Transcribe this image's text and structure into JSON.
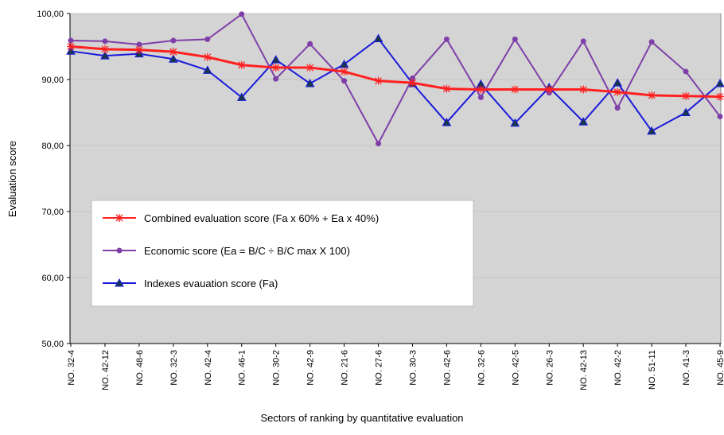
{
  "chart_data": {
    "type": "line",
    "x_label": "Sectors of ranking by quantitative evaluation",
    "y_label": "Evaluation score",
    "categories": [
      "NO. 32-4",
      "NO. 42-12",
      "NO. 48-6",
      "NO. 32-3",
      "NO. 42-4",
      "NO. 46-1",
      "NO. 30-2",
      "NO. 42-9",
      "NO. 21-6",
      "NO. 27-6",
      "NO. 30-3",
      "NO. 42-6",
      "NO. 32-6",
      "NO. 42-5",
      "NO. 26-3",
      "NO. 42-13",
      "NO. 42-2",
      "NO. 51-11",
      "NO. 41-3",
      "NO. 45-9"
    ],
    "series": [
      {
        "name": "Combined evaluation score (Fa x 60% + Ea x 40%)",
        "color": "#ff2020",
        "marker": "star",
        "values": [
          95.0,
          94.6,
          94.5,
          94.2,
          93.4,
          92.2,
          91.8,
          91.8,
          91.2,
          89.8,
          89.5,
          88.6,
          88.5,
          88.5,
          88.5,
          88.5,
          88.1,
          87.6,
          87.5,
          87.4
        ]
      },
      {
        "name": "Economic score (Ea = B/C ÷ B/C max X 100)",
        "color": "#7f3fa8",
        "marker": "circle",
        "values": [
          95.9,
          95.8,
          95.3,
          95.9,
          96.1,
          99.9,
          90.1,
          95.4,
          89.8,
          80.3,
          90.2,
          96.1,
          87.3,
          96.1,
          88.0,
          95.8,
          85.7,
          95.7,
          91.2,
          84.4
        ]
      },
      {
        "name": "Indexes evauation score (Fa)",
        "color": "#1a1adc",
        "marker": "triangle",
        "values": [
          94.3,
          93.6,
          93.9,
          93.1,
          91.4,
          87.3,
          93.0,
          89.4,
          92.3,
          96.2,
          89.4,
          83.5,
          89.3,
          83.4,
          88.8,
          83.6,
          89.5,
          82.2,
          85.0,
          89.4
        ]
      }
    ],
    "ylim": [
      50,
      100
    ],
    "yticks": [
      {
        "value": 50,
        "label": "50,00"
      },
      {
        "value": 60,
        "label": "60,00"
      },
      {
        "value": 70,
        "label": "70,00"
      },
      {
        "value": 80,
        "label": "80,00"
      },
      {
        "value": 90,
        "label": "90,00"
      },
      {
        "value": 100,
        "label": "100,00"
      }
    ],
    "grid": true,
    "legend": "left"
  }
}
